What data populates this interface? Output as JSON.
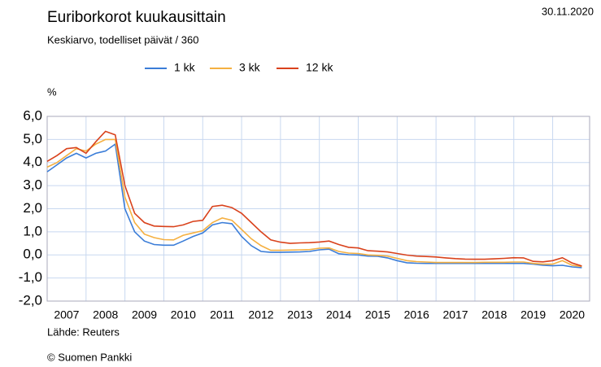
{
  "chart_data": {
    "type": "line",
    "title": "Euriborkorot kuukausittain",
    "subtitle": "Keskiarvo, todelliset päivät / 360",
    "date": "30.11.2020",
    "y_label": "%",
    "source": "Lähde: Reuters",
    "copyright": "© Suomen Pankki",
    "x": [
      2007.0,
      2007.25,
      2007.5,
      2007.75,
      2008.0,
      2008.25,
      2008.5,
      2008.75,
      2009.0,
      2009.25,
      2009.5,
      2009.75,
      2010.0,
      2010.25,
      2010.5,
      2010.75,
      2011.0,
      2011.25,
      2011.5,
      2011.75,
      2012.0,
      2012.25,
      2012.5,
      2012.75,
      2013.0,
      2013.25,
      2013.5,
      2013.75,
      2014.0,
      2014.25,
      2014.5,
      2014.75,
      2015.0,
      2015.25,
      2015.5,
      2015.75,
      2016.0,
      2016.25,
      2016.5,
      2016.75,
      2017.0,
      2017.25,
      2017.5,
      2017.75,
      2018.0,
      2018.25,
      2018.5,
      2018.75,
      2019.0,
      2019.25,
      2019.5,
      2019.75,
      2020.0,
      2020.25,
      2020.5,
      2020.75
    ],
    "series": [
      {
        "name": "1 kk",
        "color": "#3b7dd8",
        "values": [
          3.6,
          3.9,
          4.2,
          4.4,
          4.2,
          4.4,
          4.5,
          4.8,
          2.0,
          1.0,
          0.6,
          0.45,
          0.42,
          0.42,
          0.6,
          0.8,
          0.95,
          1.3,
          1.4,
          1.35,
          0.8,
          0.4,
          0.15,
          0.11,
          0.11,
          0.12,
          0.13,
          0.15,
          0.22,
          0.25,
          0.05,
          0.01,
          0.0,
          -0.05,
          -0.06,
          -0.13,
          -0.25,
          -0.34,
          -0.36,
          -0.37,
          -0.37,
          -0.37,
          -0.37,
          -0.37,
          -0.37,
          -0.37,
          -0.37,
          -0.37,
          -0.37,
          -0.37,
          -0.4,
          -0.45,
          -0.47,
          -0.45,
          -0.52,
          -0.55
        ]
      },
      {
        "name": "3 kk",
        "color": "#f5b041",
        "values": [
          3.8,
          4.0,
          4.3,
          4.6,
          4.5,
          4.8,
          5.0,
          5.0,
          2.5,
          1.4,
          0.9,
          0.75,
          0.66,
          0.65,
          0.85,
          0.95,
          1.05,
          1.4,
          1.6,
          1.5,
          1.1,
          0.7,
          0.4,
          0.2,
          0.2,
          0.21,
          0.22,
          0.23,
          0.29,
          0.3,
          0.15,
          0.08,
          0.06,
          0.0,
          -0.02,
          -0.05,
          -0.15,
          -0.25,
          -0.29,
          -0.31,
          -0.33,
          -0.33,
          -0.33,
          -0.33,
          -0.33,
          -0.32,
          -0.32,
          -0.32,
          -0.31,
          -0.31,
          -0.37,
          -0.4,
          -0.4,
          -0.25,
          -0.45,
          -0.5
        ]
      },
      {
        "name": "12 kk",
        "color": "#d9421c",
        "values": [
          4.05,
          4.3,
          4.6,
          4.65,
          4.4,
          4.9,
          5.35,
          5.2,
          3.0,
          1.8,
          1.4,
          1.25,
          1.23,
          1.22,
          1.3,
          1.45,
          1.5,
          2.1,
          2.15,
          2.05,
          1.8,
          1.4,
          1.0,
          0.65,
          0.55,
          0.5,
          0.52,
          0.53,
          0.56,
          0.6,
          0.45,
          0.33,
          0.3,
          0.18,
          0.16,
          0.13,
          0.06,
          -0.01,
          -0.05,
          -0.07,
          -0.09,
          -0.13,
          -0.16,
          -0.18,
          -0.19,
          -0.19,
          -0.17,
          -0.15,
          -0.12,
          -0.13,
          -0.28,
          -0.3,
          -0.25,
          -0.12,
          -0.35,
          -0.48
        ]
      }
    ],
    "xlim": [
      2007,
      2020.95
    ],
    "xticks": [
      2007,
      2008,
      2009,
      2010,
      2011,
      2012,
      2013,
      2014,
      2015,
      2016,
      2017,
      2018,
      2019,
      2020
    ],
    "ylim": [
      -2,
      6
    ],
    "yticks": [
      {
        "value": -2,
        "label": "-2,0"
      },
      {
        "value": -1,
        "label": "-1,0"
      },
      {
        "value": 0,
        "label": "0,0"
      },
      {
        "value": 1,
        "label": "1,0"
      },
      {
        "value": 2,
        "label": "2,0"
      },
      {
        "value": 3,
        "label": "3,0"
      },
      {
        "value": 4,
        "label": "4,0"
      },
      {
        "value": 5,
        "label": "5,0"
      },
      {
        "value": 6,
        "label": "6,0"
      }
    ],
    "grid": true
  }
}
